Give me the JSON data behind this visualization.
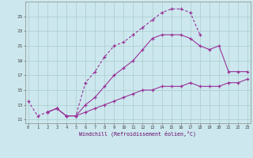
{
  "bg_color": "#cce8ee",
  "grid_color": "#aacccc",
  "line_color": "#993399",
  "line1_x": [
    0,
    1,
    2,
    3,
    4,
    5,
    6,
    7,
    8,
    9,
    10,
    11,
    12,
    13,
    14,
    15,
    16,
    17,
    18
  ],
  "line1_y": [
    13.5,
    11.5,
    12.0,
    12.5,
    11.5,
    11.5,
    16.0,
    17.5,
    19.5,
    21.0,
    21.5,
    22.5,
    23.5,
    24.5,
    25.5,
    26.0,
    26.0,
    25.5,
    22.5
  ],
  "line2_x": [
    2,
    3,
    4,
    5,
    6,
    7,
    8,
    9,
    10,
    11,
    12,
    13,
    14,
    15,
    16,
    17,
    18,
    19,
    20,
    21,
    22,
    23
  ],
  "line2_y": [
    12.0,
    12.5,
    11.5,
    11.5,
    13.0,
    14.0,
    15.5,
    17.0,
    18.0,
    19.0,
    20.5,
    22.0,
    22.5,
    22.5,
    22.5,
    22.0,
    21.0,
    20.5,
    21.0,
    17.5,
    17.5,
    17.5
  ],
  "line3_x": [
    2,
    3,
    4,
    5,
    6,
    7,
    8,
    9,
    10,
    11,
    12,
    13,
    14,
    15,
    16,
    17,
    18,
    19,
    20,
    21,
    22,
    23
  ],
  "line3_y": [
    12.0,
    12.5,
    11.5,
    11.5,
    12.0,
    12.5,
    13.0,
    13.5,
    14.0,
    14.5,
    15.0,
    15.0,
    15.5,
    15.5,
    15.5,
    16.0,
    15.5,
    15.5,
    15.5,
    16.0,
    16.0,
    16.5
  ],
  "xlabel": "Windchill (Refroidissement éolien,°C)",
  "yticks": [
    11,
    13,
    15,
    17,
    19,
    21,
    23,
    25
  ],
  "xticks": [
    0,
    1,
    2,
    3,
    4,
    5,
    6,
    7,
    8,
    9,
    10,
    11,
    12,
    13,
    14,
    15,
    16,
    17,
    18,
    19,
    20,
    21,
    22,
    23
  ],
  "xlim": [
    -0.3,
    23.3
  ],
  "ylim": [
    10.5,
    27.0
  ]
}
